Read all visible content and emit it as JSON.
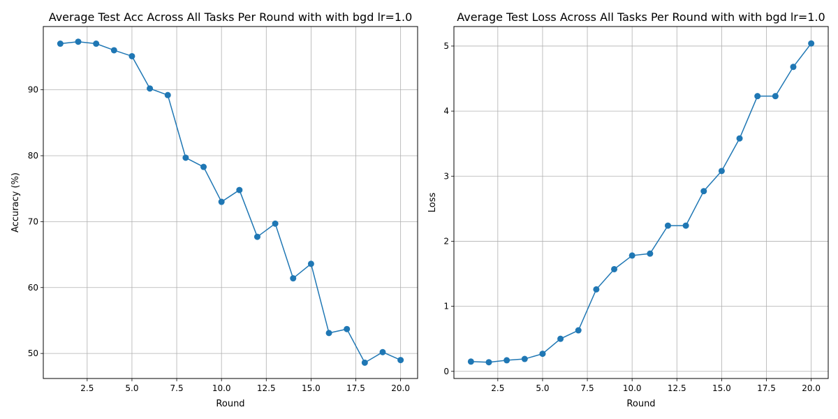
{
  "chart_data": [
    {
      "type": "line",
      "title": "Average Test Acc Across All Tasks Per Round with with bgd lr=1.0",
      "xlabel": "Round",
      "ylabel": "Accuracy (%)",
      "xlim": [
        0.05,
        20.95
      ],
      "ylim": [
        46.2,
        99.6
      ],
      "xticks": [
        2.5,
        5.0,
        7.5,
        10.0,
        12.5,
        15.0,
        17.5,
        20.0
      ],
      "xtick_labels": [
        "2.5",
        "5.0",
        "7.5",
        "10.0",
        "12.5",
        "15.0",
        "17.5",
        "20.0"
      ],
      "yticks": [
        50,
        60,
        70,
        80,
        90
      ],
      "ytick_labels": [
        "50",
        "60",
        "70",
        "80",
        "90"
      ],
      "grid": true,
      "color": "#1f77b4",
      "marker": "circle",
      "x": [
        1,
        2,
        3,
        4,
        5,
        6,
        7,
        8,
        9,
        10,
        11,
        12,
        13,
        14,
        15,
        16,
        17,
        18,
        19,
        20
      ],
      "values": [
        97.0,
        97.3,
        97.0,
        96.0,
        95.1,
        90.2,
        89.2,
        79.7,
        78.3,
        73.0,
        74.8,
        67.7,
        69.7,
        61.4,
        63.6,
        53.1,
        53.7,
        48.6,
        50.2,
        49.0
      ]
    },
    {
      "type": "line",
      "title": "Average Test Loss Across All Tasks Per Round with with bgd lr=1.0",
      "xlabel": "Round",
      "ylabel": "Loss",
      "xlim": [
        0.05,
        20.95
      ],
      "ylim": [
        -0.11,
        5.3
      ],
      "xticks": [
        2.5,
        5.0,
        7.5,
        10.0,
        12.5,
        15.0,
        17.5,
        20.0
      ],
      "xtick_labels": [
        "2.5",
        "5.0",
        "7.5",
        "10.0",
        "12.5",
        "15.0",
        "17.5",
        "20.0"
      ],
      "yticks": [
        0,
        1,
        2,
        3,
        4,
        5
      ],
      "ytick_labels": [
        "0",
        "1",
        "2",
        "3",
        "4",
        "5"
      ],
      "grid": true,
      "color": "#1f77b4",
      "marker": "circle",
      "x": [
        1,
        2,
        3,
        4,
        5,
        6,
        7,
        8,
        9,
        10,
        11,
        12,
        13,
        14,
        15,
        16,
        17,
        18,
        19,
        20
      ],
      "values": [
        0.15,
        0.14,
        0.17,
        0.19,
        0.27,
        0.5,
        0.63,
        1.26,
        1.57,
        1.78,
        1.81,
        2.24,
        2.24,
        2.77,
        3.08,
        3.58,
        4.23,
        4.23,
        4.68,
        5.04
      ]
    }
  ]
}
